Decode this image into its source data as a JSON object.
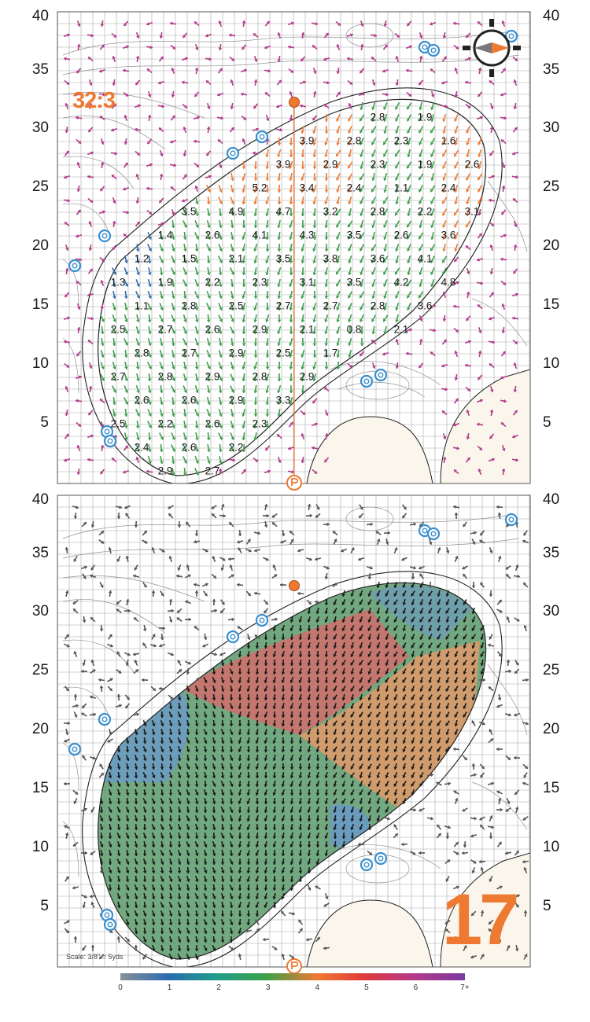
{
  "putts_figure": "32:3",
  "hole_number": "17",
  "scale_note": "Scale: 3/8\" = 5yds",
  "axis_labels": [
    "40",
    "35",
    "30",
    "25",
    "20",
    "15",
    "10",
    "5"
  ],
  "legend": {
    "ticks": [
      "0",
      "1",
      "2",
      "3",
      "4",
      "5",
      "6",
      "7+"
    ],
    "colors": [
      "#8a8f9a",
      "#2b6cb0",
      "#1f9e89",
      "#3aa04a",
      "#ee7a32",
      "#e03a3a",
      "#b43a8a",
      "#7a3aa0"
    ]
  },
  "slope_values": [
    "2.8",
    "1.9",
    "3.9",
    "2.8",
    "2.3",
    "1.6",
    "3.9",
    "2.9",
    "2.3",
    "1.9",
    "2.6",
    "5.2",
    "3.4",
    "2.4",
    "1.1",
    "2.4",
    "3.5",
    "4.9",
    "4.7",
    "3.2",
    "2.8",
    "2.2",
    "3.1",
    "1.4",
    "2.6",
    "4.1",
    "4.3",
    "3.5",
    "2.6",
    "3.6",
    "1.2",
    "1.5",
    "2.1",
    "3.5",
    "3.8",
    "3.6",
    "4.1",
    "1.3",
    "1.9",
    "2.2",
    "2.3",
    "3.1",
    "3.5",
    "4.2",
    "4.8",
    "1.1",
    "2.8",
    "2.5",
    "2.7",
    "2.7",
    "2.8",
    "3.6",
    "2.5",
    "2.7",
    "2.6",
    "2.9",
    "2.1",
    "0.8",
    "2.1",
    "2.8",
    "2.7",
    "2.9",
    "2.5",
    "1.7",
    "2.7",
    "2.8",
    "2.9",
    "2.8",
    "2.9",
    "2.6",
    "2.6",
    "2.9",
    "3.3",
    "2.5",
    "2.2",
    "2.6",
    "2.3",
    "2.4",
    "2.6",
    "2.2",
    "2.9",
    "2.7"
  ],
  "colors": {
    "accent_orange": "#ee7a32",
    "sprinkler_blue": "#3a8fd0",
    "grid_line": "#9a9a9a",
    "fringe_fill": "#fbf6ec",
    "zone_green": "#5a9a6a",
    "zone_red": "#d86a6a",
    "zone_orange": "#e09a6a",
    "zone_blue": "#6a9ac8"
  },
  "icons": {
    "sprinkler": "sprinkler-icon",
    "flag": "flag-pin-icon",
    "approach_marker": "approach-marker-icon",
    "compass": "compass-icon"
  }
}
